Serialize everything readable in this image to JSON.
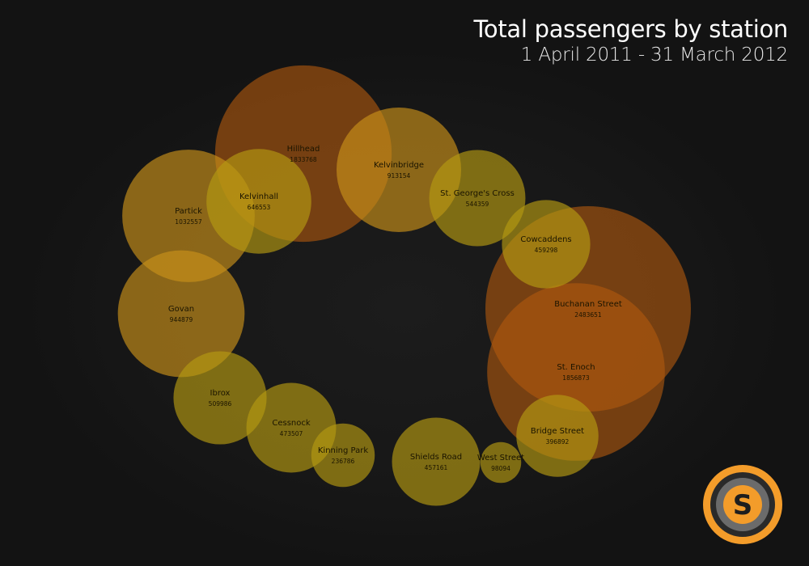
{
  "chart_data": {
    "type": "bubble",
    "title": "Total passengers by station",
    "subtitle": "1 April 2011 - 31 March 2012",
    "stations": [
      {
        "name": "Hillhead",
        "value": 1833768
      },
      {
        "name": "Kelvinbridge",
        "value": 913154
      },
      {
        "name": "St. George's Cross",
        "value": 544359
      },
      {
        "name": "Cowcaddens",
        "value": 459298
      },
      {
        "name": "Buchanan Street",
        "value": 2483651
      },
      {
        "name": "St. Enoch",
        "value": 1856873
      },
      {
        "name": "Bridge Street",
        "value": 396892
      },
      {
        "name": "West Street",
        "value": 98094
      },
      {
        "name": "Shields Road",
        "value": 457161
      },
      {
        "name": "Kinning Park",
        "value": 236786
      },
      {
        "name": "Cessnock",
        "value": 473507
      },
      {
        "name": "Ibrox",
        "value": 509986
      },
      {
        "name": "Govan",
        "value": 944879
      },
      {
        "name": "Partick",
        "value": 1032557
      },
      {
        "name": "Kelvinhall",
        "value": 646553
      }
    ],
    "colors": {
      "low": "#b59a12",
      "mid": "#c9901a",
      "high": "#b0580f"
    }
  },
  "logo": {
    "letter": "S",
    "ring_color": "#f0a030",
    "inner_color": "#6a6a6a"
  }
}
